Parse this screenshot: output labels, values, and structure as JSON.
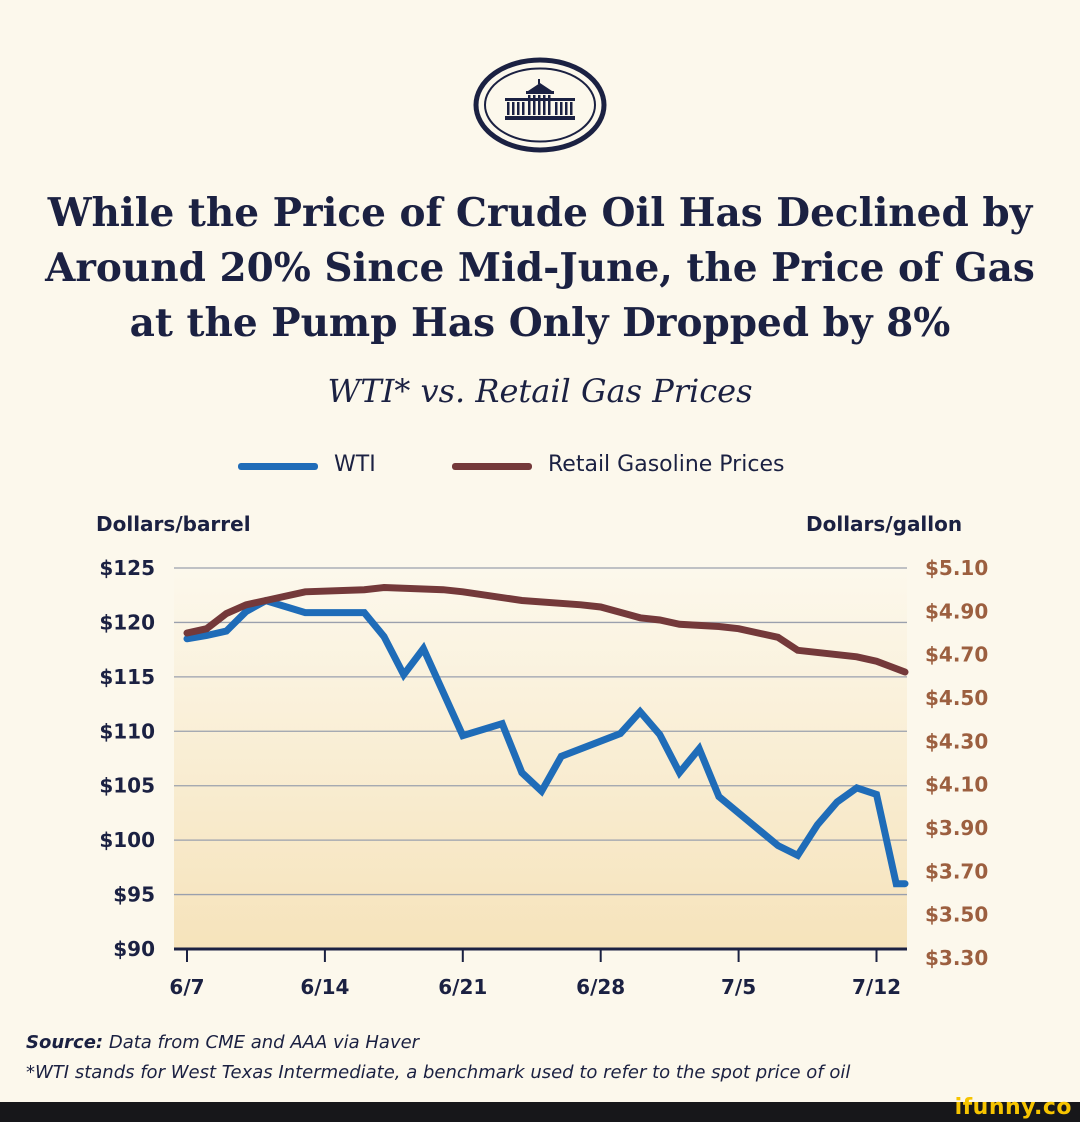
{
  "header": {
    "logo_icon": "white-house-seal-icon",
    "title_lines": [
      "While the Price of Crude Oil Has Declined by",
      "Around 20% Since Mid-June, the Price of Gas",
      "at the Pump Has Only Dropped by 8%"
    ],
    "subtitle": "WTI* vs. Retail Gas Prices"
  },
  "legend": {
    "wti_label": "WTI",
    "gas_label": "Retail Gasoline Prices"
  },
  "axes": {
    "left_title": "Dollars/barrel",
    "right_title": "Dollars/gallon"
  },
  "chart_data": {
    "type": "line",
    "title": "WTI* vs. Retail Gas Prices",
    "x_ticks": [
      "6/7",
      "6/14",
      "6/21",
      "6/28",
      "7/5",
      "7/12"
    ],
    "left_axis": {
      "label": "Dollars/barrel",
      "ylim": [
        90,
        125
      ],
      "ticks": [
        90,
        95,
        100,
        105,
        110,
        115,
        120,
        125
      ],
      "tick_labels": [
        "$90",
        "$95",
        "$100",
        "$105",
        "$110",
        "$115",
        "$120",
        "$125"
      ]
    },
    "right_axis": {
      "label": "Dollars/gallon",
      "ticks": [
        3.3,
        3.5,
        3.7,
        3.9,
        4.1,
        4.3,
        4.5,
        4.7,
        4.9,
        5.1
      ],
      "tick_labels": [
        "$3.30",
        "$3.50",
        "$3.70",
        "$3.90",
        "$4.10",
        "$4.30",
        "$4.50",
        "$4.70",
        "$4.90",
        "$5.10"
      ]
    },
    "grid": true,
    "legend_position": "top-center",
    "series": [
      {
        "name": "WTI",
        "axis": "left",
        "color": "#1f6cb8",
        "x": [
          "6/7",
          "6/8",
          "6/9",
          "6/10",
          "6/11",
          "6/13",
          "6/16",
          "6/17",
          "6/18",
          "6/19",
          "6/21",
          "6/23",
          "6/24",
          "6/25",
          "6/26",
          "6/29",
          "6/30",
          "7/1",
          "7/2",
          "7/3",
          "7/4",
          "7/7",
          "7/8",
          "7/9",
          "7/10",
          "7/11",
          "7/12",
          "7/13",
          "7/14"
        ],
        "values": [
          118.5,
          118.8,
          119.2,
          121.0,
          122.0,
          120.9,
          120.9,
          118.7,
          115.2,
          117.6,
          109.6,
          110.7,
          106.2,
          104.5,
          107.7,
          109.8,
          111.8,
          109.7,
          106.2,
          108.4,
          104.0,
          99.5,
          98.6,
          101.4,
          103.5,
          104.8,
          104.2,
          96.0,
          96.0
        ],
        "note": ""
      },
      {
        "name": "Retail Gasoline Prices",
        "axis": "right",
        "color": "#74393a",
        "x": [
          "6/7",
          "6/8",
          "6/9",
          "6/10",
          "6/11",
          "6/13",
          "6/16",
          "6/17",
          "6/20",
          "6/21",
          "6/24",
          "6/27",
          "6/28",
          "6/30",
          "7/1",
          "7/2",
          "7/4",
          "7/5",
          "7/7",
          "7/8",
          "7/11",
          "7/12",
          "7/14"
        ],
        "values": [
          4.8,
          4.82,
          4.89,
          4.93,
          4.95,
          4.99,
          5.0,
          5.01,
          5.0,
          4.99,
          4.95,
          4.93,
          4.92,
          4.87,
          4.86,
          4.84,
          4.83,
          4.82,
          4.78,
          4.72,
          4.69,
          4.67,
          4.62
        ]
      }
    ]
  },
  "footer": {
    "source_label": "Source:",
    "source_text": " Data from CME and AAA via Haver",
    "note": "*WTI stands for West Texas Intermediate, a benchmark used to refer to the spot price of oil",
    "watermark": "ifunny.co"
  }
}
